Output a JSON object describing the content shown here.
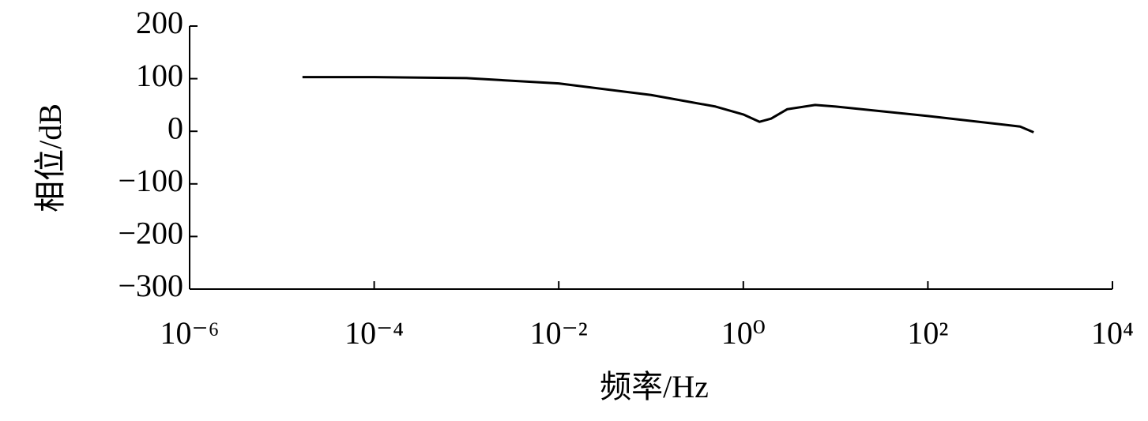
{
  "chart_data": {
    "type": "line",
    "x_label": "频率/Hz",
    "y_label": "相位/dB",
    "xscale": "log",
    "x": [
      1.67e-05,
      0.0001,
      0.001,
      0.01,
      0.1,
      0.5,
      1.0,
      1.5,
      2,
      3,
      6,
      10,
      100,
      1000,
      1400
    ],
    "series": [
      {
        "color": "#000000",
        "values": [
          103,
          103,
          101,
          91,
          69,
          47,
          32,
          18,
          24,
          42,
          50,
          47,
          29,
          9,
          -2
        ]
      }
    ],
    "xlim": [
      1e-06,
      10000
    ],
    "xticks": [
      {
        "value": 1e-06,
        "label": "10⁻⁶"
      },
      {
        "value": 0.0001,
        "label": "10⁻⁴"
      },
      {
        "value": 0.01,
        "label": "10⁻²"
      },
      {
        "value": 1,
        "label": "10⁰"
      },
      {
        "value": 100,
        "label": "10²"
      },
      {
        "value": 10000,
        "label": "10⁴"
      }
    ],
    "ylim": [
      -300,
      200
    ],
    "yticks": [
      {
        "value": -300,
        "label": "−300"
      },
      {
        "value": -200,
        "label": "−200"
      },
      {
        "value": -100,
        "label": "−100"
      },
      0,
      100,
      200
    ],
    "grid": false
  }
}
